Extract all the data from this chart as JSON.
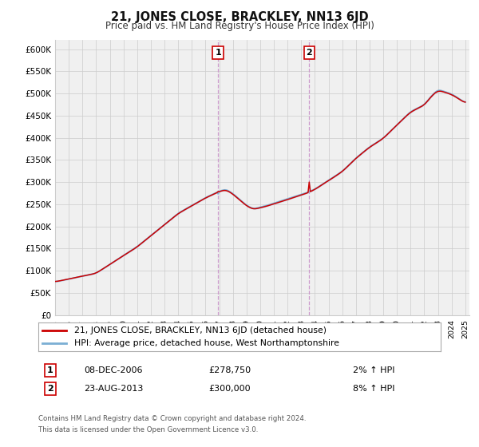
{
  "title": "21, JONES CLOSE, BRACKLEY, NN13 6JD",
  "subtitle": "Price paid vs. HM Land Registry's House Price Index (HPI)",
  "ylabel_ticks": [
    "£0",
    "£50K",
    "£100K",
    "£150K",
    "£200K",
    "£250K",
    "£300K",
    "£350K",
    "£400K",
    "£450K",
    "£500K",
    "£550K",
    "£600K"
  ],
  "ylim": [
    0,
    620000
  ],
  "ytick_vals": [
    0,
    50000,
    100000,
    150000,
    200000,
    250000,
    300000,
    350000,
    400000,
    450000,
    500000,
    550000,
    600000
  ],
  "legend_line1": "21, JONES CLOSE, BRACKLEY, NN13 6JD (detached house)",
  "legend_line2": "HPI: Average price, detached house, West Northamptonshire",
  "ann1_label": "1",
  "ann1_date": "08-DEC-2006",
  "ann1_price": "£278,750",
  "ann1_hpi": "2% ↑ HPI",
  "ann2_label": "2",
  "ann2_date": "23-AUG-2013",
  "ann2_price": "£300,000",
  "ann2_hpi": "8% ↑ HPI",
  "footnote1": "Contains HM Land Registry data © Crown copyright and database right 2024.",
  "footnote2": "This data is licensed under the Open Government Licence v3.0.",
  "line_color_red": "#cc0000",
  "line_color_blue": "#7bafd4",
  "shade_color": "#cce0f0",
  "grid_color": "#cccccc",
  "vline_color": "#cc99cc",
  "bg_color": "#ffffff",
  "plot_bg_color": "#f0f0f0",
  "sale1_year_float": 2006.917,
  "sale2_year_float": 2013.583,
  "sale1_price": 278750,
  "sale2_price": 300000
}
